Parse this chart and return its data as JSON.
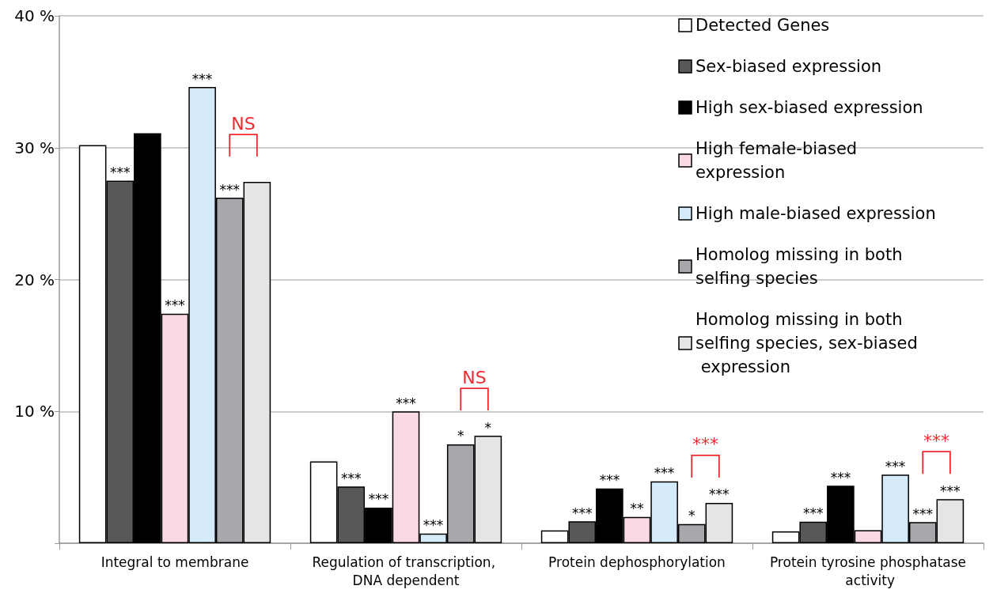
{
  "chart_data": {
    "type": "bar",
    "categories": [
      "Integral to membrane",
      "Regulation of transcription, DNA dependent",
      "Protein dephosphorylation",
      "Protein tyrosine phosphatase activity"
    ],
    "series": [
      {
        "name": "Detected Genes",
        "color": "#ffffff",
        "values": [
          30.2,
          6.2,
          0.97,
          0.9
        ],
        "value_labels": [
          null,
          null,
          null,
          null
        ]
      },
      {
        "name": "Sex-biased expression",
        "color": "#58585a",
        "values": [
          27.5,
          4.3,
          1.67,
          1.63
        ],
        "value_labels": [
          "***",
          "***",
          "***",
          "***"
        ]
      },
      {
        "name": "High sex-biased expression",
        "color": "#000000",
        "values": [
          31.1,
          2.7,
          4.16,
          4.36
        ],
        "value_labels": [
          null,
          "***",
          "***",
          "***"
        ]
      },
      {
        "name": "High female-biased expression",
        "color": "#f9d9e6",
        "values": [
          17.4,
          10.0,
          2.0,
          0.99
        ],
        "value_labels": [
          "***",
          "***",
          "**",
          null
        ]
      },
      {
        "name": "High male-biased expression",
        "color": "#d6ebf9",
        "values": [
          34.6,
          0.74,
          4.7,
          5.2
        ],
        "value_labels": [
          "***",
          "***",
          "***",
          "***"
        ]
      },
      {
        "name": "Homolog missing in both selfing species",
        "color": "#a7a8ab",
        "values": [
          26.2,
          7.5,
          1.45,
          1.6
        ],
        "value_labels": [
          "***",
          "*",
          "*",
          "***"
        ]
      },
      {
        "name": "Homolog missing in both selfing species, sex-biased expression",
        "color": "#e5e5e5",
        "values": [
          27.4,
          8.15,
          3.06,
          3.35
        ],
        "value_labels": [
          null,
          "*",
          "***",
          "***"
        ]
      }
    ],
    "ylim": [
      0,
      40
    ],
    "yticks": [
      {
        "value": 0,
        "label": null
      },
      {
        "value": 10,
        "label": "10 %"
      },
      {
        "value": 20,
        "label": "20 %"
      },
      {
        "value": 30,
        "label": "30 %"
      },
      {
        "value": 40,
        "label": "40 %"
      }
    ],
    "grid": "y",
    "legend": "top right",
    "annotations": [
      "NS",
      "NS",
      "***",
      "***"
    ]
  }
}
